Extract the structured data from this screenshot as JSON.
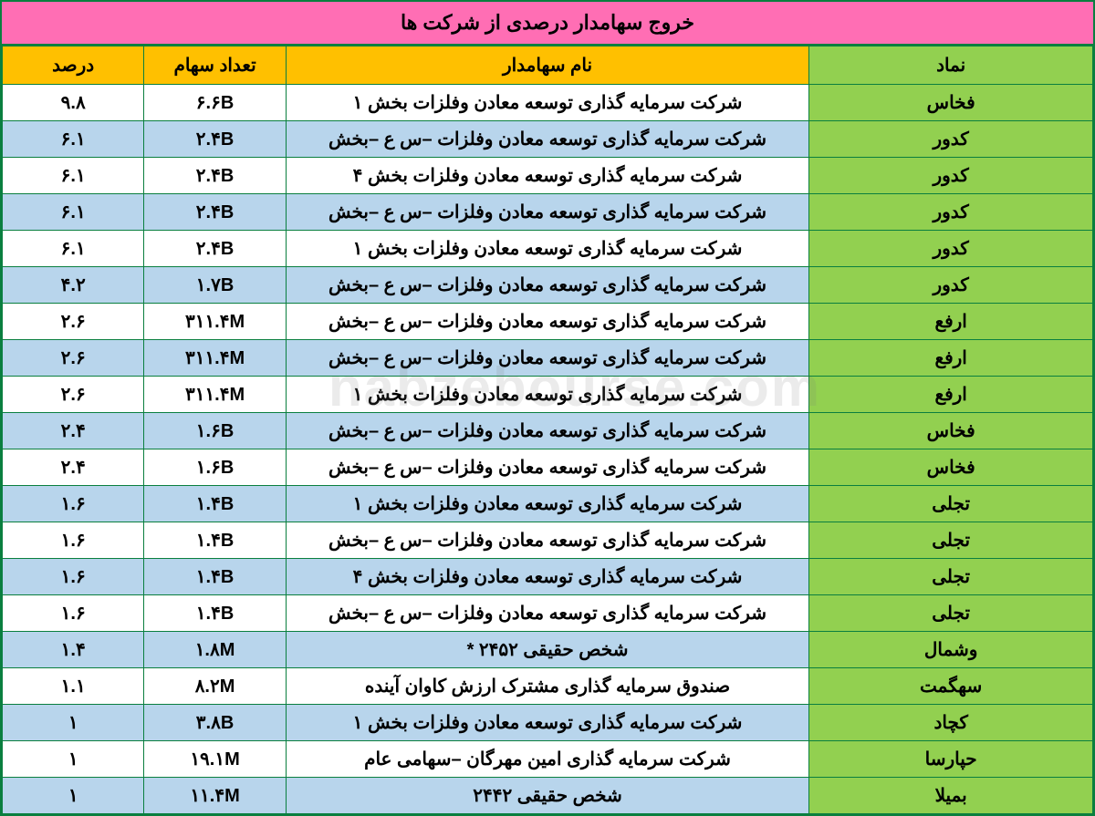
{
  "title": "خروج سهامدار درصدی از شرکت ها",
  "headers": {
    "symbol": "نماد",
    "shareholder": "نام سهامدار",
    "shares": "تعداد سهام",
    "percent": "درصد"
  },
  "watermark": "nabzebourse.com",
  "colors": {
    "title_bg": "#ff6eb4",
    "header_bg": "#ffc000",
    "symbol_bg": "#92d050",
    "row_white": "#ffffff",
    "row_blue": "#b8d5ec",
    "border": "#0a7f3f"
  },
  "rows": [
    {
      "symbol": "فخاس",
      "shareholder": "شرکت سرمایه گذاری توسعه معادن وفلزات بخش ۱",
      "shares": "۶.۶B",
      "percent": "۹.۸",
      "alt": false
    },
    {
      "symbol": "کدور",
      "shareholder": "شرکت سرمایه گذاری توسعه معادن وفلزات –س ع –بخش",
      "shares": "۲.۴B",
      "percent": "۶.۱",
      "alt": true
    },
    {
      "symbol": "کدور",
      "shareholder": "شرکت سرمایه گذاری توسعه معادن وفلزات بخش ۴",
      "shares": "۲.۴B",
      "percent": "۶.۱",
      "alt": false
    },
    {
      "symbol": "کدور",
      "shareholder": "شرکت سرمایه گذاری توسعه معادن وفلزات –س ع –بخش",
      "shares": "۲.۴B",
      "percent": "۶.۱",
      "alt": true
    },
    {
      "symbol": "کدور",
      "shareholder": "شرکت سرمایه گذاری توسعه معادن وفلزات بخش ۱",
      "shares": "۲.۴B",
      "percent": "۶.۱",
      "alt": false
    },
    {
      "symbol": "کدور",
      "shareholder": "شرکت سرمایه گذاری توسعه معادن وفلزات –س ع –بخش",
      "shares": "۱.۷B",
      "percent": "۴.۲",
      "alt": true
    },
    {
      "symbol": "ارفع",
      "shareholder": "شرکت سرمایه گذاری توسعه معادن وفلزات –س ع –بخش",
      "shares": "۳۱۱.۴M",
      "percent": "۲.۶",
      "alt": false
    },
    {
      "symbol": "ارفع",
      "shareholder": "شرکت سرمایه گذاری توسعه معادن وفلزات –س ع –بخش",
      "shares": "۳۱۱.۴M",
      "percent": "۲.۶",
      "alt": true
    },
    {
      "symbol": "ارفع",
      "shareholder": "شرکت سرمایه گذاری توسعه معادن وفلزات بخش ۱",
      "shares": "۳۱۱.۴M",
      "percent": "۲.۶",
      "alt": false
    },
    {
      "symbol": "فخاس",
      "shareholder": "شرکت سرمایه گذاری توسعه معادن وفلزات –س ع –بخش",
      "shares": "۱.۶B",
      "percent": "۲.۴",
      "alt": true
    },
    {
      "symbol": "فخاس",
      "shareholder": "شرکت سرمایه گذاری توسعه معادن وفلزات –س ع –بخش",
      "shares": "۱.۶B",
      "percent": "۲.۴",
      "alt": false
    },
    {
      "symbol": "تجلی",
      "shareholder": "شرکت سرمایه گذاری توسعه معادن وفلزات بخش ۱",
      "shares": "۱.۴B",
      "percent": "۱.۶",
      "alt": true
    },
    {
      "symbol": "تجلی",
      "shareholder": "شرکت سرمایه گذاری توسعه معادن وفلزات –س ع –بخش",
      "shares": "۱.۴B",
      "percent": "۱.۶",
      "alt": false
    },
    {
      "symbol": "تجلی",
      "shareholder": "شرکت سرمایه گذاری توسعه معادن وفلزات بخش ۴",
      "shares": "۱.۴B",
      "percent": "۱.۶",
      "alt": true
    },
    {
      "symbol": "تجلی",
      "shareholder": "شرکت سرمایه گذاری توسعه معادن وفلزات –س ع –بخش",
      "shares": "۱.۴B",
      "percent": "۱.۶",
      "alt": false
    },
    {
      "symbol": "وشمال",
      "shareholder": "شخص حقیقی ۲۴۵۲ *",
      "shares": "۱.۸M",
      "percent": "۱.۴",
      "alt": true
    },
    {
      "symbol": "سهگمت",
      "shareholder": "صندوق سرمایه گذاری مشترک ارزش کاوان آینده",
      "shares": "۸.۲M",
      "percent": "۱.۱",
      "alt": false
    },
    {
      "symbol": "کچاد",
      "shareholder": "شرکت سرمایه گذاری توسعه معادن وفلزات بخش ۱",
      "shares": "۳.۸B",
      "percent": "۱",
      "alt": true
    },
    {
      "symbol": "حپارسا",
      "shareholder": "شرکت سرمایه گذاری امین مهرگان –سهامی عام",
      "shares": "۱۹.۱M",
      "percent": "۱",
      "alt": false
    },
    {
      "symbol": "بمیلا",
      "shareholder": "شخص حقیقی ۲۴۴۲",
      "shares": "۱۱.۴M",
      "percent": "۱",
      "alt": true
    }
  ]
}
